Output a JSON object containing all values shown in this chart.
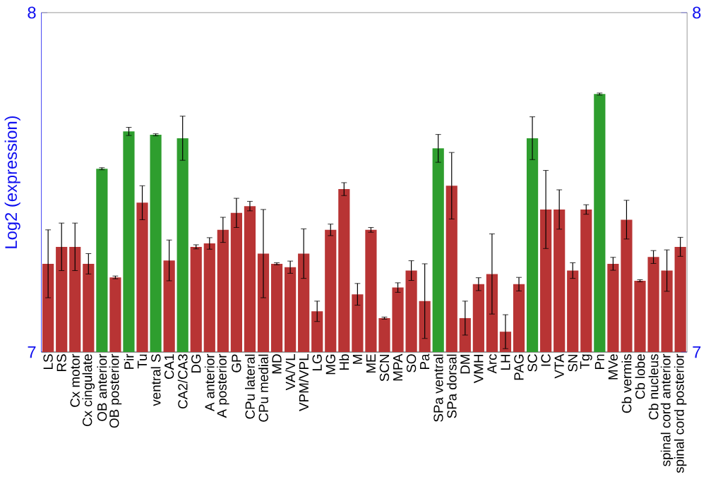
{
  "chart_data": {
    "type": "bar",
    "ylabel": "Log2 (expression)",
    "categories": [
      "LS",
      "RS",
      "Cx motor",
      "Cx cingulate",
      "OB anterior",
      "OB posterior",
      "Pir",
      "Tu",
      "ventral S",
      "CA1",
      "CA2/CA3",
      "DG",
      "A anterior",
      "A posterior",
      "GP",
      "CPu lateral",
      "CPu medial",
      "MD",
      "VA/VL",
      "VPM/VPL",
      "LG",
      "MG",
      "Hb",
      "M",
      "ME",
      "SCN",
      "MPA",
      "SO",
      "Pa",
      "SPa ventral",
      "SPa dorsal",
      "DM",
      "VMH",
      "Arc",
      "LH",
      "PAG",
      "SC",
      "IC",
      "VTA",
      "SN",
      "Tg",
      "Pn",
      "MVe",
      "Cb vermis",
      "Cb lobe",
      "Cb nucleus",
      "spinal cord anterior",
      "spinal cord posterior"
    ],
    "values": [
      7.26,
      7.31,
      7.31,
      7.26,
      7.54,
      7.22,
      7.65,
      7.44,
      7.64,
      7.27,
      7.63,
      7.31,
      7.32,
      7.36,
      7.41,
      7.43,
      7.29,
      7.26,
      7.25,
      7.29,
      7.12,
      7.36,
      7.48,
      7.17,
      7.36,
      7.1,
      7.19,
      7.24,
      7.15,
      7.6,
      7.49,
      7.1,
      7.2,
      7.23,
      7.06,
      7.2,
      7.63,
      7.42,
      7.42,
      7.24,
      7.42,
      7.76,
      7.26,
      7.39,
      7.21,
      7.28,
      7.24,
      7.31
    ],
    "errors": [
      0.1,
      0.07,
      0.07,
      0.03,
      0.003,
      0.004,
      0.012,
      0.05,
      0.003,
      0.06,
      0.065,
      0.006,
      0.017,
      0.037,
      0.043,
      0.014,
      0.13,
      0.003,
      0.018,
      0.073,
      0.03,
      0.017,
      0.019,
      0.032,
      0.007,
      0.003,
      0.014,
      0.029,
      0.11,
      0.041,
      0.098,
      0.05,
      0.019,
      0.118,
      0.05,
      0.02,
      0.063,
      0.115,
      0.058,
      0.023,
      0.014,
      0.003,
      0.019,
      0.057,
      0.003,
      0.019,
      0.061,
      0.028
    ],
    "colors": [
      "#b83434",
      "#b83434",
      "#b83434",
      "#b83434",
      "#2e9e2e",
      "#b83434",
      "#2e9e2e",
      "#b83434",
      "#2e9e2e",
      "#b83434",
      "#2e9e2e",
      "#b83434",
      "#b83434",
      "#b83434",
      "#b83434",
      "#b83434",
      "#b83434",
      "#b83434",
      "#b83434",
      "#b83434",
      "#b83434",
      "#b83434",
      "#b83434",
      "#b83434",
      "#b83434",
      "#b83434",
      "#b83434",
      "#b83434",
      "#b83434",
      "#2e9e2e",
      "#b83434",
      "#b83434",
      "#b83434",
      "#b83434",
      "#b83434",
      "#b83434",
      "#2e9e2e",
      "#b83434",
      "#b83434",
      "#b83434",
      "#b83434",
      "#2e9e2e",
      "#b83434",
      "#b83434",
      "#b83434",
      "#b83434",
      "#b83434",
      "#b83434"
    ],
    "ylim": [
      7,
      8
    ],
    "yticks": [
      7,
      8
    ],
    "y2lim": [
      7,
      8
    ],
    "y2ticks": [
      7,
      8
    ],
    "grid": false
  }
}
